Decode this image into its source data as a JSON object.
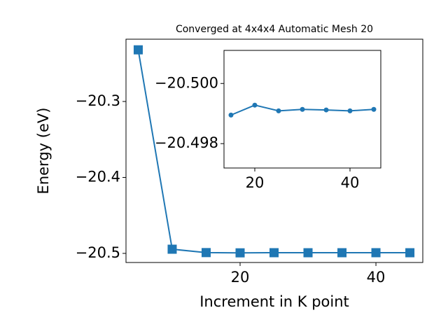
{
  "chart_data": [
    {
      "type": "line",
      "title": "Converged at 4x4x4 Automatic Mesh 20",
      "xlabel": "Increment in K point",
      "ylabel": "Energy (eV)",
      "x": [
        5,
        10,
        15,
        20,
        25,
        30,
        35,
        40,
        45
      ],
      "series": [
        {
          "color": "#1f77b4",
          "marker": "square",
          "values": [
            -20.232,
            -20.4945,
            -20.49895,
            -20.49928,
            -20.49909,
            -20.49914,
            -20.49912,
            -20.49909,
            -20.49914
          ]
        }
      ],
      "xlim": [
        3.2,
        46.9
      ],
      "ylim": [
        -20.512,
        -20.218
      ],
      "xticks": [
        20,
        40
      ],
      "yticks": [
        {
          "value": -20.5,
          "label": "−20.5"
        },
        {
          "value": -20.4,
          "label": "−20.4"
        },
        {
          "value": -20.3,
          "label": "−20.3"
        }
      ]
    },
    {
      "type": "line",
      "x": [
        15,
        20,
        25,
        30,
        35,
        40,
        45
      ],
      "series": [
        {
          "color": "#1f77b4",
          "marker": "circle",
          "values": [
            -20.49895,
            -20.49928,
            -20.49909,
            -20.49914,
            -20.49912,
            -20.49909,
            -20.49914
          ]
        }
      ],
      "xlim": [
        13.53,
        46.47
      ],
      "ylim": [
        -20.49719,
        -20.5011
      ],
      "xticks": [
        20,
        40
      ],
      "yticks": [
        {
          "value": -20.5,
          "label": "−20.500"
        },
        {
          "value": -20.498,
          "label": "−20.498"
        }
      ]
    }
  ]
}
